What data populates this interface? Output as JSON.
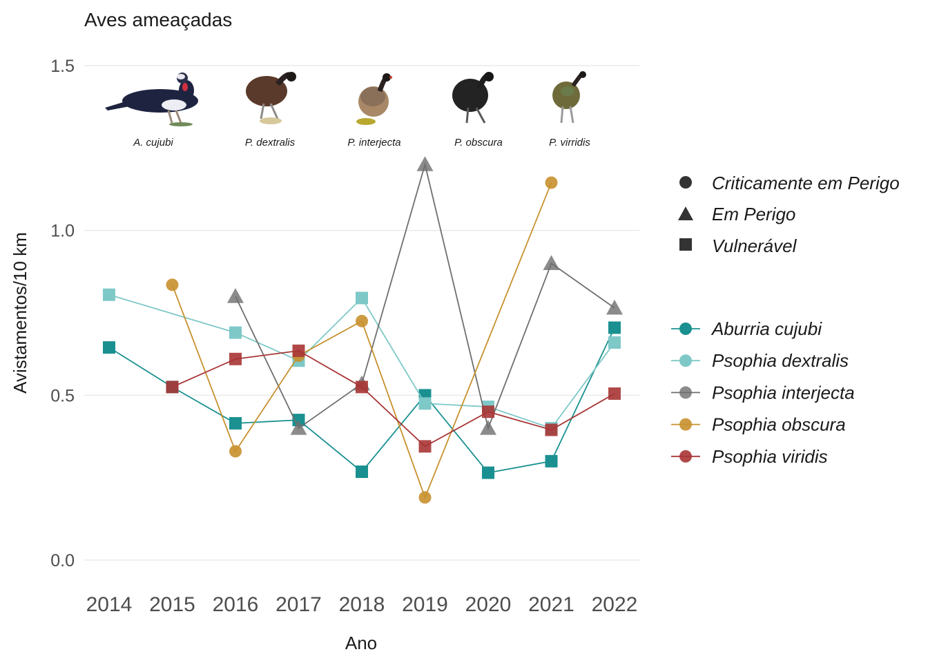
{
  "chart_data": {
    "type": "line",
    "title": "Aves ameaçadas",
    "xlabel": "Ano",
    "ylabel": "Avistamentos/10 km",
    "ylim": [
      0,
      1.55
    ],
    "yticks": [
      "0.0",
      "0.5",
      "1.0",
      "1.5"
    ],
    "x": [
      2014,
      2015,
      2016,
      2017,
      2018,
      2019,
      2020,
      2021,
      2022
    ],
    "grid": true,
    "legend_position": "right",
    "shape_legend": [
      {
        "label": "Criticamente em Perigo",
        "shape": "circle"
      },
      {
        "label": "Em Perigo",
        "shape": "triangle"
      },
      {
        "label": "Vulnerável",
        "shape": "square"
      }
    ],
    "series": [
      {
        "name": "Aburria cujubi",
        "color": "#1a9090",
        "alpha": 1.0,
        "shape": "square",
        "values": [
          0.645,
          0.525,
          0.415,
          0.425,
          0.268,
          0.5,
          0.265,
          0.3,
          0.705
        ]
      },
      {
        "name": "Psophia dextralis",
        "color": "#7ec8c8",
        "alpha": 1.0,
        "shape": "square",
        "values": [
          0.805,
          null,
          0.69,
          0.605,
          0.795,
          0.475,
          0.465,
          0.4,
          0.66
        ]
      },
      {
        "name": "Psophia interjecta",
        "color": "#6e6e6e",
        "alpha": 0.8,
        "shape": "triangle",
        "values": [
          null,
          null,
          0.8,
          0.4,
          0.535,
          1.2,
          0.4,
          0.9,
          0.765
        ]
      },
      {
        "name": "Psophia obscura",
        "color": "#c8902e",
        "alpha": 0.9,
        "shape": "circle",
        "values": [
          null,
          0.835,
          0.33,
          0.62,
          0.725,
          0.19,
          null,
          1.145,
          null
        ]
      },
      {
        "name": "Psophia viridis",
        "color": "#a83535",
        "alpha": 0.9,
        "shape": "square",
        "values": [
          null,
          0.525,
          0.61,
          0.635,
          0.525,
          0.345,
          0.45,
          0.395,
          0.505
        ]
      }
    ],
    "annotations": [
      "A. cujubi",
      "P. dextralis",
      "P. interjecta",
      "P. obscura",
      "P. virridis"
    ]
  }
}
